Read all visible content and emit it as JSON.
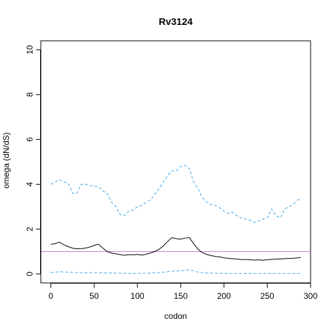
{
  "chart_data": {
    "type": "line",
    "title": "Rv3124",
    "xlabel": "codon",
    "ylabel": "omega (dN/dS)",
    "xlim": [
      -11.6,
      300
    ],
    "ylim": [
      -0.4,
      10.4
    ],
    "xticks": [
      0,
      50,
      100,
      150,
      200,
      250,
      300
    ],
    "yticks": [
      0,
      2,
      4,
      6,
      8,
      10
    ],
    "grid": false,
    "reference_line": {
      "y": 1,
      "color": "#C77CC6"
    },
    "series": [
      {
        "style": "solid",
        "color": "#000000",
        "x": [
          0,
          5,
          10,
          15,
          20,
          25,
          30,
          35,
          40,
          45,
          50,
          55,
          60,
          65,
          70,
          75,
          80,
          85,
          90,
          95,
          100,
          105,
          110,
          115,
          120,
          125,
          130,
          135,
          140,
          145,
          150,
          155,
          160,
          165,
          170,
          175,
          180,
          185,
          190,
          195,
          200,
          205,
          210,
          215,
          220,
          225,
          230,
          235,
          240,
          245,
          250,
          255,
          260,
          265,
          270,
          275,
          280,
          285,
          289
        ],
        "y": [
          1.32,
          1.35,
          1.42,
          1.3,
          1.22,
          1.15,
          1.12,
          1.13,
          1.15,
          1.2,
          1.27,
          1.33,
          1.15,
          1.0,
          0.93,
          0.9,
          0.86,
          0.83,
          0.86,
          0.85,
          0.87,
          0.84,
          0.88,
          0.93,
          1.0,
          1.1,
          1.25,
          1.45,
          1.62,
          1.57,
          1.55,
          1.6,
          1.62,
          1.35,
          1.1,
          0.95,
          0.87,
          0.82,
          0.78,
          0.76,
          0.72,
          0.7,
          0.68,
          0.66,
          0.64,
          0.64,
          0.63,
          0.62,
          0.63,
          0.61,
          0.63,
          0.65,
          0.66,
          0.67,
          0.68,
          0.69,
          0.7,
          0.72,
          0.74
        ]
      },
      {
        "style": "dashed",
        "color": "#3DA6E8",
        "x": [
          0,
          5,
          10,
          15,
          20,
          25,
          30,
          35,
          40,
          45,
          50,
          55,
          60,
          65,
          70,
          75,
          80,
          85,
          90,
          95,
          100,
          105,
          110,
          115,
          120,
          125,
          130,
          135,
          140,
          145,
          150,
          155,
          160,
          165,
          170,
          175,
          180,
          185,
          190,
          195,
          200,
          205,
          210,
          215,
          220,
          225,
          230,
          235,
          240,
          245,
          250,
          255,
          260,
          265,
          270,
          275,
          280,
          285,
          289
        ],
        "y": [
          4.0,
          4.1,
          4.2,
          4.1,
          4.05,
          3.6,
          3.6,
          4.0,
          4.0,
          3.95,
          3.9,
          3.9,
          3.7,
          3.6,
          3.2,
          3.0,
          2.65,
          2.6,
          2.8,
          2.85,
          3.0,
          3.05,
          3.2,
          3.3,
          3.55,
          3.8,
          4.1,
          4.4,
          4.6,
          4.6,
          4.8,
          4.85,
          4.7,
          4.1,
          3.8,
          3.4,
          3.2,
          3.1,
          3.05,
          2.95,
          2.8,
          2.7,
          2.75,
          2.6,
          2.5,
          2.45,
          2.4,
          2.3,
          2.35,
          2.45,
          2.5,
          2.9,
          2.6,
          2.5,
          2.9,
          3.0,
          3.1,
          3.3,
          3.35
        ]
      },
      {
        "style": "dashed",
        "color": "#3DA6E8",
        "x": [
          0,
          10,
          20,
          30,
          40,
          50,
          60,
          70,
          80,
          90,
          100,
          110,
          120,
          130,
          140,
          150,
          160,
          170,
          180,
          190,
          200,
          210,
          220,
          230,
          240,
          250,
          260,
          270,
          280,
          289
        ],
        "y": [
          0.06,
          0.1,
          0.08,
          0.06,
          0.05,
          0.06,
          0.05,
          0.04,
          0.03,
          0.02,
          0.02,
          0.03,
          0.05,
          0.08,
          0.12,
          0.14,
          0.18,
          0.08,
          0.04,
          0.03,
          0.02,
          0.02,
          0.02,
          0.02,
          0.02,
          0.02,
          0.02,
          0.02,
          0.02,
          0.02
        ]
      }
    ]
  }
}
